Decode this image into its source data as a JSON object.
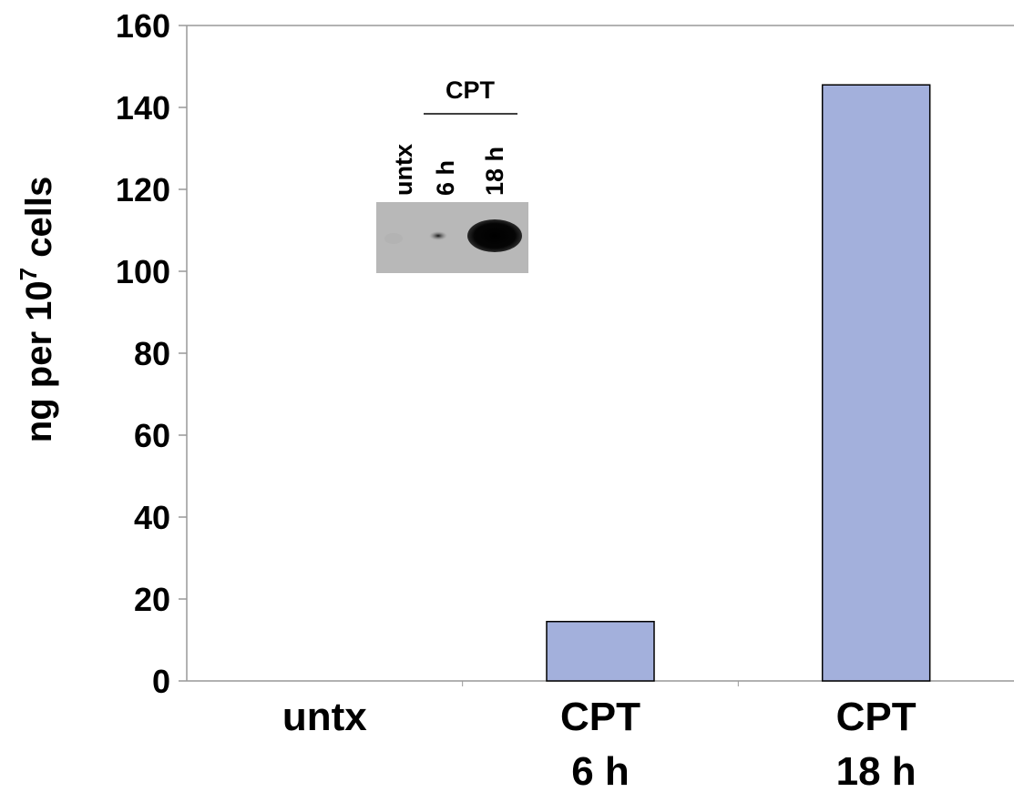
{
  "chart_data": {
    "type": "bar",
    "categories": [
      [
        "untx"
      ],
      [
        "CPT",
        "6 h"
      ],
      [
        "CPT",
        "18 h"
      ]
    ],
    "values": [
      0,
      14.5,
      145.5
    ],
    "ylabel_main": "ng per 10",
    "ylabel_sup": "7",
    "ylabel_tail": " cells",
    "ylim": [
      0,
      160
    ],
    "yticks": [
      0,
      20,
      40,
      60,
      80,
      100,
      120,
      140,
      160
    ],
    "grid": false,
    "colors": {
      "bar_fill": "#A3B0DC",
      "bar_stroke": "#000000",
      "axis": "#999999"
    }
  },
  "inset": {
    "lane_labels": [
      "untx",
      "6 h",
      "18 h"
    ],
    "group_label": "CPT"
  }
}
